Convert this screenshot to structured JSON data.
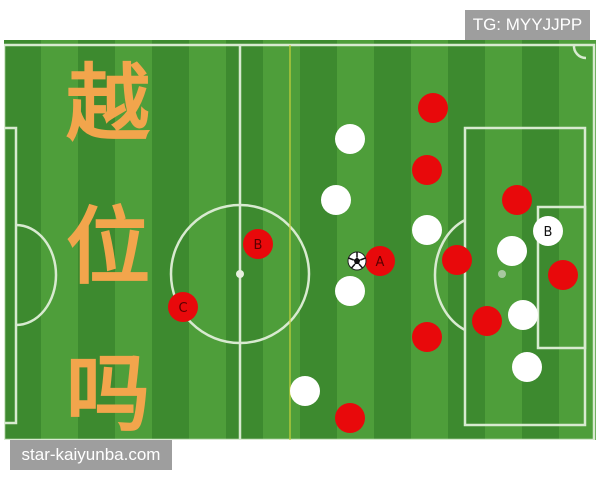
{
  "watermark_top": "TG: MYYJJPP",
  "watermark_bottom": "star-kaiyunba.com",
  "title_chars": [
    "越",
    "位",
    "吗"
  ],
  "colors": {
    "red_team": "#e8090b",
    "white_team": "#ffffff",
    "title": "#f2a54c",
    "grass_light": "#4e9e3a",
    "grass_dark": "#3d8a2f",
    "offside_line": "#c8d23a"
  },
  "players": {
    "red": [
      {
        "label": ""
      },
      {
        "label": ""
      },
      {
        "label": ""
      },
      {
        "label": ""
      },
      {
        "label": ""
      },
      {
        "label": ""
      },
      {
        "label": ""
      },
      {
        "label": ""
      },
      {
        "label": "B"
      },
      {
        "label": "C"
      },
      {
        "label": "A"
      }
    ],
    "white": [
      {
        "label": ""
      },
      {
        "label": ""
      },
      {
        "label": ""
      },
      {
        "label": ""
      },
      {
        "label": "B"
      },
      {
        "label": ""
      },
      {
        "label": ""
      },
      {
        "label": ""
      },
      {
        "label": ""
      }
    ]
  },
  "ball_icon": "soccer-ball-icon"
}
